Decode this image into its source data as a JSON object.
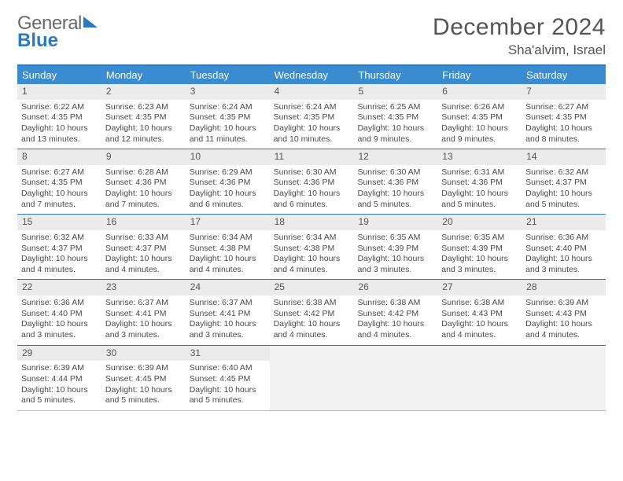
{
  "brand": {
    "word1": "General",
    "word2": "Blue"
  },
  "title": "December 2024",
  "location": "Sha'alvim, Israel",
  "colors": {
    "header_bar": "#3b8bd0",
    "rule": "#2e78bd",
    "daynum_bg": "#ebebeb",
    "empty_bg": "#f1f1f1",
    "text": "#4a4a4a"
  },
  "daysOfWeek": [
    "Sunday",
    "Monday",
    "Tuesday",
    "Wednesday",
    "Thursday",
    "Friday",
    "Saturday"
  ],
  "weeks": [
    [
      {
        "n": "1",
        "sr": "Sunrise: 6:22 AM",
        "ss": "Sunset: 4:35 PM",
        "dl": "Daylight: 10 hours and 13 minutes."
      },
      {
        "n": "2",
        "sr": "Sunrise: 6:23 AM",
        "ss": "Sunset: 4:35 PM",
        "dl": "Daylight: 10 hours and 12 minutes."
      },
      {
        "n": "3",
        "sr": "Sunrise: 6:24 AM",
        "ss": "Sunset: 4:35 PM",
        "dl": "Daylight: 10 hours and 11 minutes."
      },
      {
        "n": "4",
        "sr": "Sunrise: 6:24 AM",
        "ss": "Sunset: 4:35 PM",
        "dl": "Daylight: 10 hours and 10 minutes."
      },
      {
        "n": "5",
        "sr": "Sunrise: 6:25 AM",
        "ss": "Sunset: 4:35 PM",
        "dl": "Daylight: 10 hours and 9 minutes."
      },
      {
        "n": "6",
        "sr": "Sunrise: 6:26 AM",
        "ss": "Sunset: 4:35 PM",
        "dl": "Daylight: 10 hours and 9 minutes."
      },
      {
        "n": "7",
        "sr": "Sunrise: 6:27 AM",
        "ss": "Sunset: 4:35 PM",
        "dl": "Daylight: 10 hours and 8 minutes."
      }
    ],
    [
      {
        "n": "8",
        "sr": "Sunrise: 6:27 AM",
        "ss": "Sunset: 4:35 PM",
        "dl": "Daylight: 10 hours and 7 minutes."
      },
      {
        "n": "9",
        "sr": "Sunrise: 6:28 AM",
        "ss": "Sunset: 4:36 PM",
        "dl": "Daylight: 10 hours and 7 minutes."
      },
      {
        "n": "10",
        "sr": "Sunrise: 6:29 AM",
        "ss": "Sunset: 4:36 PM",
        "dl": "Daylight: 10 hours and 6 minutes."
      },
      {
        "n": "11",
        "sr": "Sunrise: 6:30 AM",
        "ss": "Sunset: 4:36 PM",
        "dl": "Daylight: 10 hours and 6 minutes."
      },
      {
        "n": "12",
        "sr": "Sunrise: 6:30 AM",
        "ss": "Sunset: 4:36 PM",
        "dl": "Daylight: 10 hours and 5 minutes."
      },
      {
        "n": "13",
        "sr": "Sunrise: 6:31 AM",
        "ss": "Sunset: 4:36 PM",
        "dl": "Daylight: 10 hours and 5 minutes."
      },
      {
        "n": "14",
        "sr": "Sunrise: 6:32 AM",
        "ss": "Sunset: 4:37 PM",
        "dl": "Daylight: 10 hours and 5 minutes."
      }
    ],
    [
      {
        "n": "15",
        "sr": "Sunrise: 6:32 AM",
        "ss": "Sunset: 4:37 PM",
        "dl": "Daylight: 10 hours and 4 minutes."
      },
      {
        "n": "16",
        "sr": "Sunrise: 6:33 AM",
        "ss": "Sunset: 4:37 PM",
        "dl": "Daylight: 10 hours and 4 minutes."
      },
      {
        "n": "17",
        "sr": "Sunrise: 6:34 AM",
        "ss": "Sunset: 4:38 PM",
        "dl": "Daylight: 10 hours and 4 minutes."
      },
      {
        "n": "18",
        "sr": "Sunrise: 6:34 AM",
        "ss": "Sunset: 4:38 PM",
        "dl": "Daylight: 10 hours and 4 minutes."
      },
      {
        "n": "19",
        "sr": "Sunrise: 6:35 AM",
        "ss": "Sunset: 4:39 PM",
        "dl": "Daylight: 10 hours and 3 minutes."
      },
      {
        "n": "20",
        "sr": "Sunrise: 6:35 AM",
        "ss": "Sunset: 4:39 PM",
        "dl": "Daylight: 10 hours and 3 minutes."
      },
      {
        "n": "21",
        "sr": "Sunrise: 6:36 AM",
        "ss": "Sunset: 4:40 PM",
        "dl": "Daylight: 10 hours and 3 minutes."
      }
    ],
    [
      {
        "n": "22",
        "sr": "Sunrise: 6:36 AM",
        "ss": "Sunset: 4:40 PM",
        "dl": "Daylight: 10 hours and 3 minutes."
      },
      {
        "n": "23",
        "sr": "Sunrise: 6:37 AM",
        "ss": "Sunset: 4:41 PM",
        "dl": "Daylight: 10 hours and 3 minutes."
      },
      {
        "n": "24",
        "sr": "Sunrise: 6:37 AM",
        "ss": "Sunset: 4:41 PM",
        "dl": "Daylight: 10 hours and 3 minutes."
      },
      {
        "n": "25",
        "sr": "Sunrise: 6:38 AM",
        "ss": "Sunset: 4:42 PM",
        "dl": "Daylight: 10 hours and 4 minutes."
      },
      {
        "n": "26",
        "sr": "Sunrise: 6:38 AM",
        "ss": "Sunset: 4:42 PM",
        "dl": "Daylight: 10 hours and 4 minutes."
      },
      {
        "n": "27",
        "sr": "Sunrise: 6:38 AM",
        "ss": "Sunset: 4:43 PM",
        "dl": "Daylight: 10 hours and 4 minutes."
      },
      {
        "n": "28",
        "sr": "Sunrise: 6:39 AM",
        "ss": "Sunset: 4:43 PM",
        "dl": "Daylight: 10 hours and 4 minutes."
      }
    ],
    [
      {
        "n": "29",
        "sr": "Sunrise: 6:39 AM",
        "ss": "Sunset: 4:44 PM",
        "dl": "Daylight: 10 hours and 5 minutes."
      },
      {
        "n": "30",
        "sr": "Sunrise: 6:39 AM",
        "ss": "Sunset: 4:45 PM",
        "dl": "Daylight: 10 hours and 5 minutes."
      },
      {
        "n": "31",
        "sr": "Sunrise: 6:40 AM",
        "ss": "Sunset: 4:45 PM",
        "dl": "Daylight: 10 hours and 5 minutes."
      },
      null,
      null,
      null,
      null
    ]
  ]
}
